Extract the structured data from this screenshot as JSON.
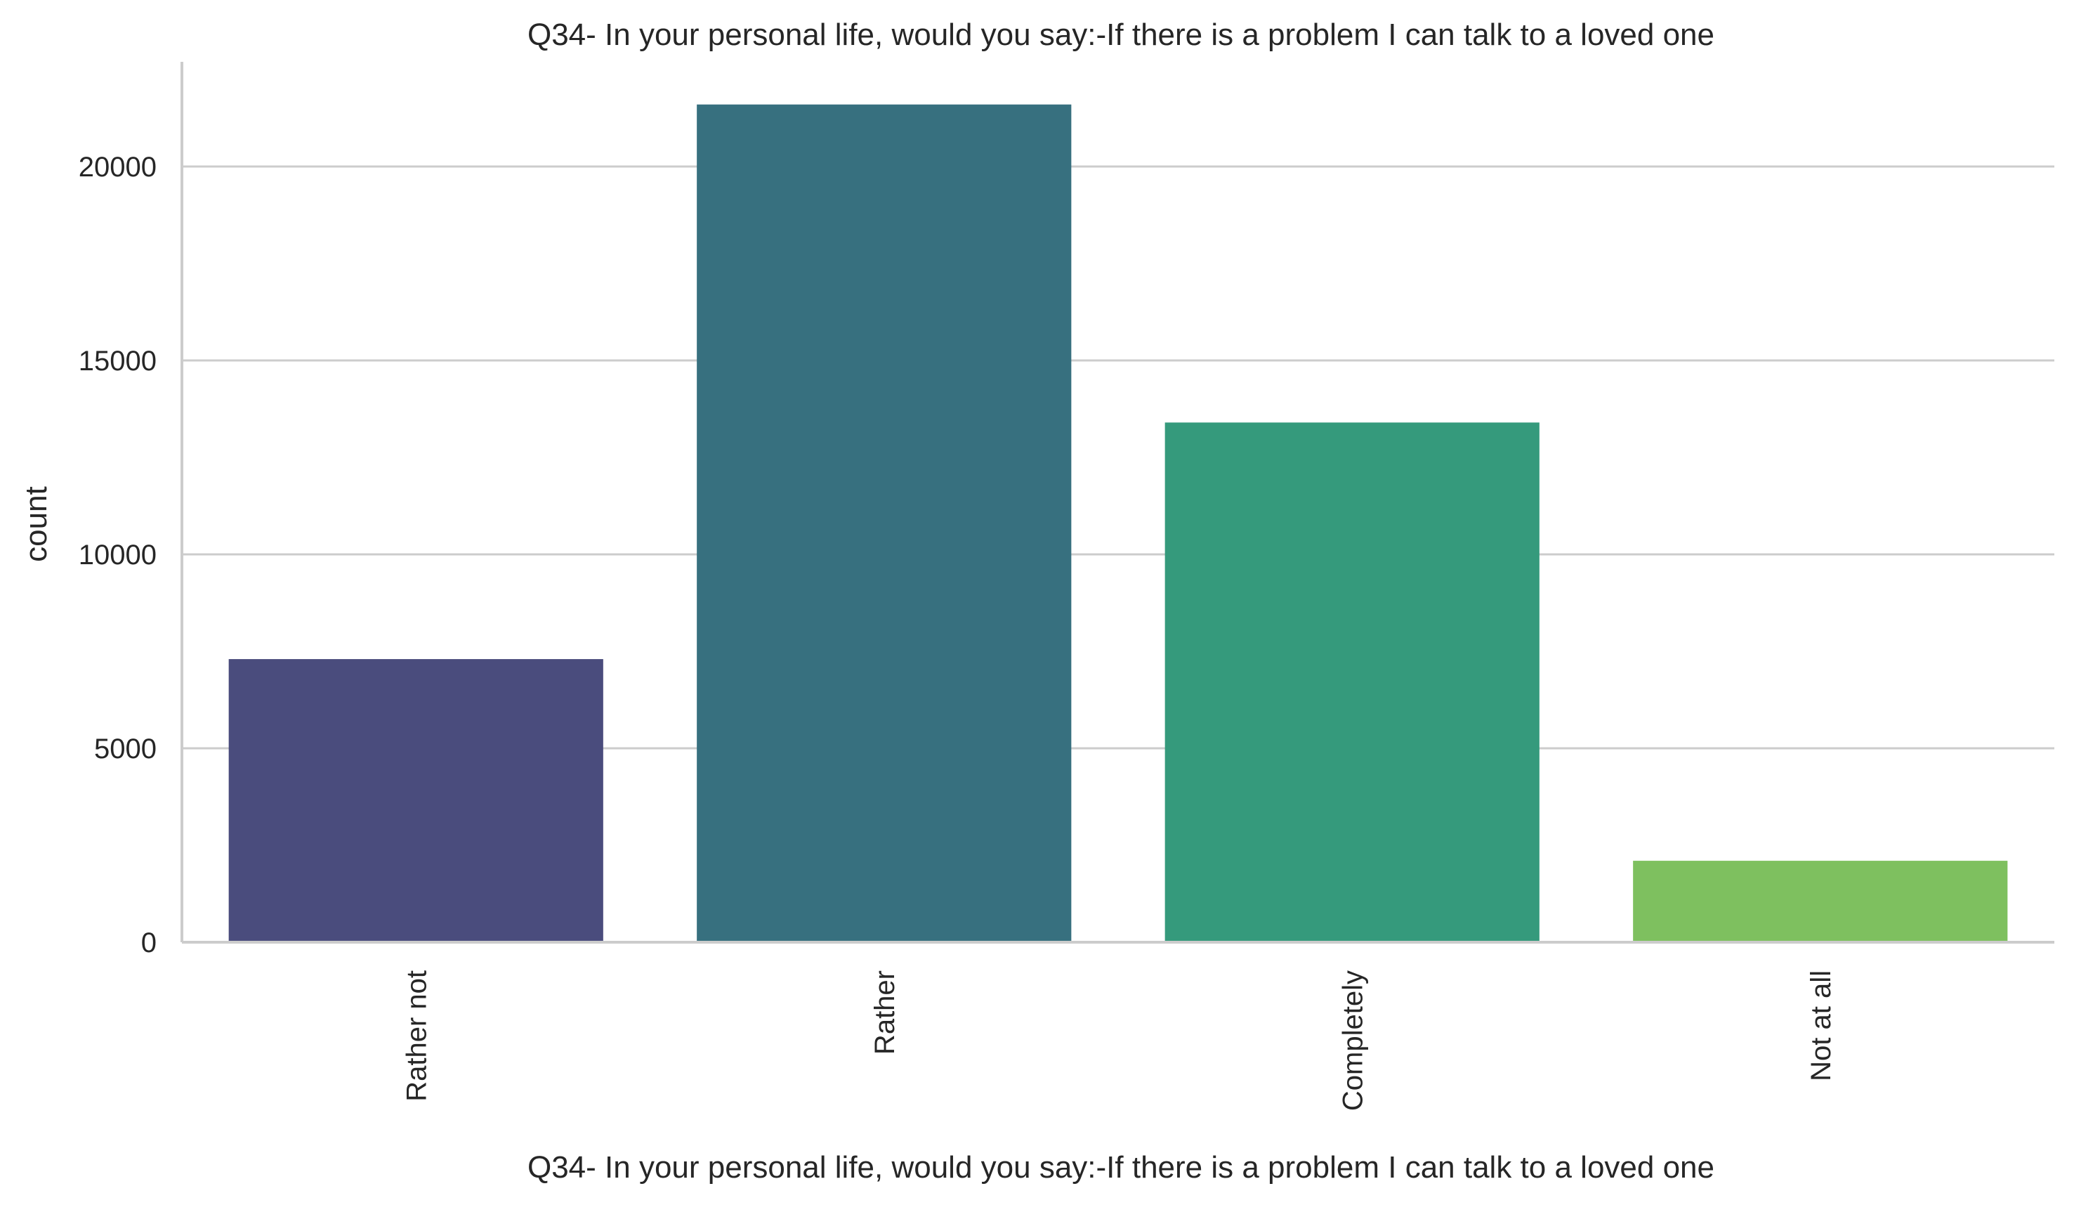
{
  "chart_data": {
    "type": "bar",
    "title": "Q34- In your personal life, would you say:-If there is a problem I can talk to a loved one",
    "xlabel": "Q34- In your personal life, would you say:-If there is a problem I can talk to a loved one",
    "ylabel": "count",
    "categories": [
      "Rather not",
      "Rather",
      "Completely",
      "Not at all"
    ],
    "values": [
      7300,
      21600,
      13400,
      2100
    ],
    "ylim": [
      0,
      22700
    ],
    "yticks": [
      0,
      5000,
      10000,
      15000,
      20000
    ],
    "grid": "horizontal",
    "colors": [
      "#4a4c7d",
      "#37707f",
      "#359a7c",
      "#7ec05f"
    ],
    "axis_color": "#cccccc",
    "grid_color": "#cccccc"
  }
}
